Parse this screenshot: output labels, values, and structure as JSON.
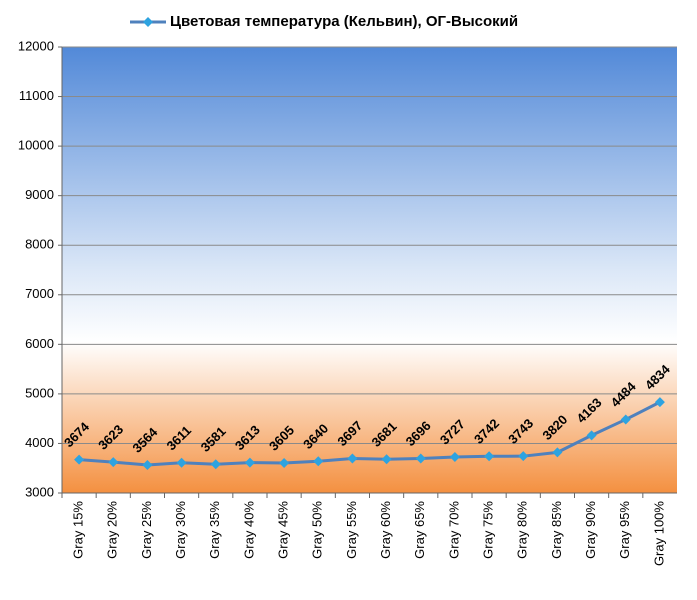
{
  "chart_data": {
    "type": "line",
    "categories": [
      "Gray 15%",
      "Gray 20%",
      "Gray 25%",
      "Gray 30%",
      "Gray 35%",
      "Gray 40%",
      "Gray 45%",
      "Gray 50%",
      "Gray 55%",
      "Gray 60%",
      "Gray 65%",
      "Gray 70%",
      "Gray 75%",
      "Gray 80%",
      "Gray 85%",
      "Gray 90%",
      "Gray 95%",
      "Gray 100%"
    ],
    "series": [
      {
        "name": "Цветовая температура (Кельвин), ОГ-Высокий",
        "color": "#4f81bd",
        "marker_color": "#2ea3e0",
        "values": [
          3674,
          3623,
          3564,
          3611,
          3581,
          3613,
          3605,
          3640,
          3697,
          3681,
          3696,
          3727,
          3742,
          3743,
          3820,
          4163,
          4484,
          4834
        ]
      }
    ],
    "ylim": [
      3000,
      12000
    ],
    "yticks": [
      3000,
      4000,
      5000,
      6000,
      7000,
      8000,
      9000,
      10000,
      11000,
      12000
    ],
    "grid": true,
    "legend": "top"
  }
}
